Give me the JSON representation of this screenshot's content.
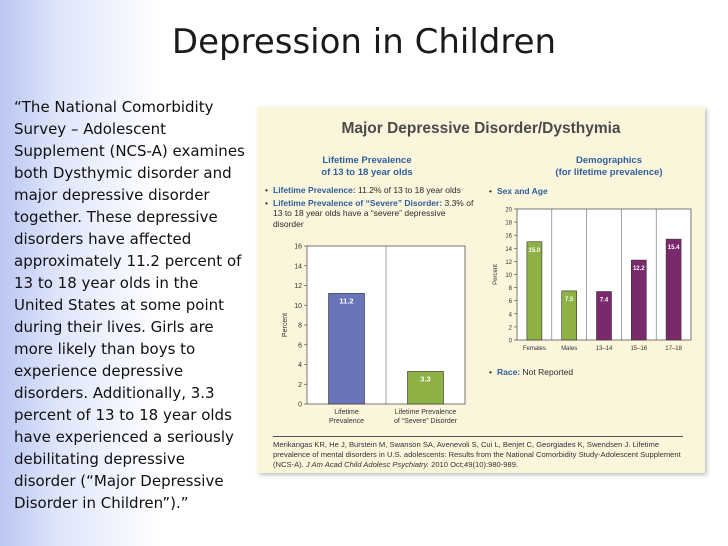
{
  "slide": {
    "title": "Depression in Children",
    "body": "“The National Comorbidity Survey – Adolescent Supplement (NCS-A) examines both Dysthymic disorder and major depressive disorder together. These depressive disorders have affected approximately 11.2 percent of 13 to 18 year olds in the United States at some point during their lives. Girls are more likely than boys to experience depressive disorders. Additionally, 3.3 percent of 13 to 18 year olds have experienced a seriously debilitating depressive disorder (“Major Depressive Disorder in Children”).”"
  },
  "figure": {
    "title": "Major Depressive Disorder/Dysthymia",
    "left": {
      "heading_line1": "Lifetime Prevalence",
      "heading_line2": "of 13 to 18 year olds",
      "bullet1_label": "Lifetime Prevalence:",
      "bullet1_text": " 11.2% of 13 to 18 year olds",
      "bullet2_label": "Lifetime Prevalence of “Severe” Disorder:",
      "bullet2_text": " 3.3% of 13 to 18 year olds have a “severe” depressive disorder"
    },
    "right": {
      "heading_line1": "Demographics",
      "heading_line2": "(for lifetime prevalence)",
      "bullet_sex_age": "Sex and Age",
      "race_label": "Race:",
      "race_text": " Not Reported"
    },
    "citation": "Merikangas KR, He J, Burstein M, Swanson SA, Avenevoli S, Cui L, Benjet C, Georgiades K, Swendsen J. Lifetime prevalence of mental disorders in U.S. adolescents: Results from the National Comorbidity Study-Adolescent Supplement (NCS-A). ",
    "citation_journal": "J Am Acad Child Adolesc Psychiatry.",
    "citation_tail": " 2010 Oct;49(10):980-989."
  },
  "chart_data": [
    {
      "type": "bar",
      "ylabel": "Percent",
      "ylim": [
        0,
        16
      ],
      "yticks": [
        0,
        2,
        4,
        6,
        8,
        10,
        12,
        14,
        16
      ],
      "categories": [
        [
          "Lifetime",
          "Prevalence"
        ],
        [
          "Lifetime Prevalence",
          "of “Severe” Disorder"
        ]
      ],
      "values": [
        11.2,
        3.3
      ],
      "labels": [
        "11.2",
        "3.3"
      ],
      "colors": [
        "#6a74b8",
        "#8db144"
      ],
      "grid": false
    },
    {
      "type": "bar",
      "ylabel": "Percent",
      "ylim": [
        0,
        20
      ],
      "yticks": [
        0,
        2,
        4,
        6,
        8,
        10,
        12,
        14,
        16,
        18,
        20
      ],
      "categories": [
        "Females",
        "Males",
        "13–14",
        "15–16",
        "17–18"
      ],
      "values": [
        15.0,
        7.5,
        7.4,
        12.2,
        15.4
      ],
      "labels": [
        "15.0",
        "7.5",
        "7.4",
        "12.2",
        "15.4"
      ],
      "colors": [
        "#8db144",
        "#8db144",
        "#7a2a6c",
        "#7a2a6c",
        "#7a2a6c"
      ],
      "grid": false
    }
  ]
}
